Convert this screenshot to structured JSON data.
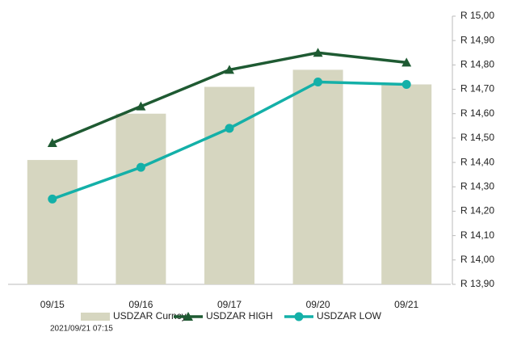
{
  "chart_data": {
    "type": "bar_line",
    "categories": [
      "09/15",
      "09/16",
      "09/17",
      "09/20",
      "09/21"
    ],
    "series": [
      {
        "name": "USDZAR Curncy",
        "kind": "bar",
        "color": "#d6d6c0",
        "values": [
          14.41,
          14.6,
          14.71,
          14.78,
          14.72
        ]
      },
      {
        "name": "USDZAR HIGH",
        "kind": "line",
        "marker": "triangle",
        "color": "#1e5a32",
        "values": [
          14.48,
          14.63,
          14.78,
          14.85,
          14.81
        ]
      },
      {
        "name": "USDZAR LOW",
        "kind": "line",
        "marker": "circle",
        "color": "#14b0a8",
        "values": [
          14.25,
          14.38,
          14.54,
          14.73,
          14.72
        ]
      }
    ],
    "ylim": [
      13.9,
      15.0
    ],
    "yticks": [
      {
        "value": 13.9,
        "label": "R 13,90"
      },
      {
        "value": 14.0,
        "label": "R 14,00"
      },
      {
        "value": 14.1,
        "label": "R 14,10"
      },
      {
        "value": 14.2,
        "label": "R 14,20"
      },
      {
        "value": 14.3,
        "label": "R 14,30"
      },
      {
        "value": 14.4,
        "label": "R 14,40"
      },
      {
        "value": 14.5,
        "label": "R 14,50"
      },
      {
        "value": 14.6,
        "label": "R 14,60"
      },
      {
        "value": 14.7,
        "label": "R 14,70"
      },
      {
        "value": 14.8,
        "label": "R 14,80"
      },
      {
        "value": 14.9,
        "label": "R 14,90"
      },
      {
        "value": 15.0,
        "label": "R 15,00"
      }
    ],
    "footnote": "2021/09/21 07:15"
  }
}
